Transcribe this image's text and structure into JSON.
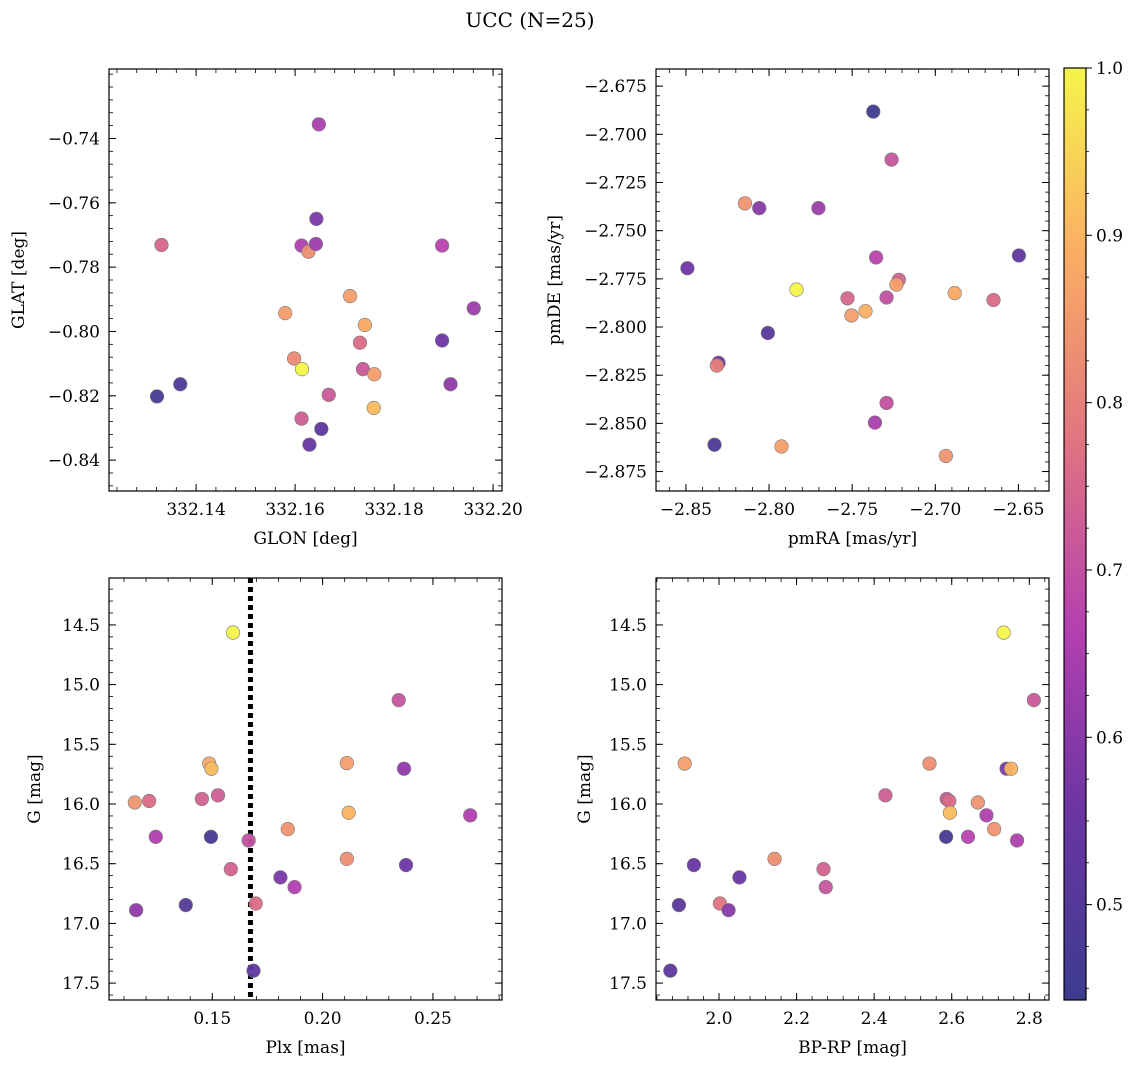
{
  "figure_title": "UCC (N=25)",
  "colorbar": {
    "min": 0.443,
    "max": 1.0,
    "ticks": [
      0.5,
      0.6,
      0.7,
      0.8,
      0.9,
      1.0
    ],
    "tick_labels": [
      "0.5",
      "0.6",
      "0.7",
      "0.8",
      "0.9",
      "1.0"
    ],
    "colormap": "plasma"
  },
  "chart_data": [
    {
      "type": "scatter",
      "xlabel": "GLON [deg]",
      "ylabel": "GLAT [deg]",
      "xlim": [
        332.1224,
        332.2018
      ],
      "ylim": [
        -0.8496,
        -0.7184
      ],
      "y_inverted": false,
      "xticks": [
        332.14,
        332.16,
        332.18,
        332.2
      ],
      "xtick_labels": [
        "332.14",
        "332.16",
        "332.18",
        "332.20"
      ],
      "yticks": [
        -0.84,
        -0.82,
        -0.8,
        -0.78,
        -0.76,
        -0.74
      ],
      "ytick_labels": [
        "−0.84",
        "−0.82",
        "−0.80",
        "−0.78",
        "−0.76",
        "−0.74"
      ],
      "points": [
        {
          "x": 332.1321,
          "y": -0.8202,
          "c": 0.46
        },
        {
          "x": 332.1368,
          "y": -0.8164,
          "c": 0.49
        },
        {
          "x": 332.133,
          "y": -0.7731,
          "c": 0.75
        },
        {
          "x": 332.158,
          "y": -0.7943,
          "c": 0.86
        },
        {
          "x": 332.1598,
          "y": -0.8084,
          "c": 0.82
        },
        {
          "x": 332.1614,
          "y": -0.8117,
          "c": 1.0
        },
        {
          "x": 332.1613,
          "y": -0.8271,
          "c": 0.73
        },
        {
          "x": 332.1629,
          "y": -0.8352,
          "c": 0.54
        },
        {
          "x": 332.1653,
          "y": -0.8303,
          "c": 0.52
        },
        {
          "x": 332.1668,
          "y": -0.8197,
          "c": 0.72
        },
        {
          "x": 332.1613,
          "y": -0.7733,
          "c": 0.66
        },
        {
          "x": 332.1627,
          "y": -0.7752,
          "c": 0.83
        },
        {
          "x": 332.1642,
          "y": -0.7728,
          "c": 0.63
        },
        {
          "x": 332.1643,
          "y": -0.765,
          "c": 0.58
        },
        {
          "x": 332.1648,
          "y": -0.7356,
          "c": 0.65
        },
        {
          "x": 332.1711,
          "y": -0.789,
          "c": 0.86
        },
        {
          "x": 332.1731,
          "y": -0.8035,
          "c": 0.76
        },
        {
          "x": 332.1737,
          "y": -0.8117,
          "c": 0.72
        },
        {
          "x": 332.1741,
          "y": -0.798,
          "c": 0.88
        },
        {
          "x": 332.176,
          "y": -0.8133,
          "c": 0.86
        },
        {
          "x": 332.1759,
          "y": -0.8238,
          "c": 0.91
        },
        {
          "x": 332.1897,
          "y": -0.7733,
          "c": 0.67
        },
        {
          "x": 332.1897,
          "y": -0.8028,
          "c": 0.56
        },
        {
          "x": 332.1914,
          "y": -0.8164,
          "c": 0.61
        },
        {
          "x": 332.1961,
          "y": -0.7928,
          "c": 0.63
        }
      ]
    },
    {
      "type": "scatter",
      "xlabel": "pmRA [mas/yr]",
      "ylabel": "pmDE [mas/yr]",
      "xlim": [
        -2.868,
        -2.6316
      ],
      "ylim": [
        -2.8851,
        -2.6661
      ],
      "y_inverted": false,
      "xticks": [
        -2.85,
        -2.8,
        -2.75,
        -2.7,
        -2.65
      ],
      "xtick_labels": [
        "−2.85",
        "−2.80",
        "−2.75",
        "−2.70",
        "−2.65"
      ],
      "yticks": [
        -2.875,
        -2.85,
        -2.825,
        -2.8,
        -2.775,
        -2.75,
        -2.725,
        -2.7,
        -2.675
      ],
      "ytick_labels": [
        "−2.875",
        "−2.850",
        "−2.825",
        "−2.800",
        "−2.775",
        "−2.750",
        "−2.725",
        "−2.700",
        "−2.675"
      ],
      "points": [
        {
          "x": -2.8491,
          "y": -2.7695,
          "c": 0.56
        },
        {
          "x": -2.8304,
          "y": -2.8186,
          "c": 0.55
        },
        {
          "x": -2.8314,
          "y": -2.82,
          "c": 0.8
        },
        {
          "x": -2.8328,
          "y": -2.8611,
          "c": 0.49
        },
        {
          "x": -2.8145,
          "y": -2.7358,
          "c": 0.84
        },
        {
          "x": -2.8059,
          "y": -2.7383,
          "c": 0.6
        },
        {
          "x": -2.8007,
          "y": -2.8031,
          "c": 0.51
        },
        {
          "x": -2.7835,
          "y": -2.7806,
          "c": 1.0
        },
        {
          "x": -2.7925,
          "y": -2.862,
          "c": 0.86
        },
        {
          "x": -2.7703,
          "y": -2.7383,
          "c": 0.63
        },
        {
          "x": -2.7373,
          "y": -2.6882,
          "c": 0.45
        },
        {
          "x": -2.7263,
          "y": -2.7131,
          "c": 0.71
        },
        {
          "x": -2.7356,
          "y": -2.7639,
          "c": 0.67
        },
        {
          "x": -2.7219,
          "y": -2.7755,
          "c": 0.74
        },
        {
          "x": -2.7234,
          "y": -2.778,
          "c": 0.86
        },
        {
          "x": -2.7528,
          "y": -2.7851,
          "c": 0.75
        },
        {
          "x": -2.7504,
          "y": -2.794,
          "c": 0.86
        },
        {
          "x": -2.742,
          "y": -2.7918,
          "c": 0.89
        },
        {
          "x": -2.7293,
          "y": -2.7847,
          "c": 0.7
        },
        {
          "x": -2.7293,
          "y": -2.8394,
          "c": 0.7
        },
        {
          "x": -2.7363,
          "y": -2.8496,
          "c": 0.65
        },
        {
          "x": -2.6936,
          "y": -2.8669,
          "c": 0.84
        },
        {
          "x": -2.6883,
          "y": -2.7824,
          "c": 0.88
        },
        {
          "x": -2.665,
          "y": -2.786,
          "c": 0.76
        },
        {
          "x": -2.6497,
          "y": -2.7629,
          "c": 0.53
        }
      ]
    },
    {
      "type": "scatter",
      "xlabel": "Plx [mas]",
      "ylabel": "G [mag]",
      "xlim": [
        0.1032,
        0.2813
      ],
      "ylim": [
        14.1071,
        17.6415
      ],
      "y_inverted": true,
      "vline": 0.1673,
      "xticks": [
        0.15,
        0.2,
        0.25
      ],
      "xtick_labels": [
        "0.15",
        "0.20",
        "0.25"
      ],
      "yticks": [
        14.5,
        15.0,
        15.5,
        16.0,
        16.5,
        17.0,
        17.5
      ],
      "ytick_labels": [
        "14.5",
        "15.0",
        "15.5",
        "16.0",
        "16.5",
        "17.0",
        "17.5"
      ],
      "points": [
        {
          "x": 0.1594,
          "y": 14.5643,
          "c": 1.0
        },
        {
          "x": 0.1486,
          "y": 15.6612,
          "c": 0.88
        },
        {
          "x": 0.1496,
          "y": 15.7041,
          "c": 0.91
        },
        {
          "x": 0.1149,
          "y": 15.9875,
          "c": 0.84
        },
        {
          "x": 0.1214,
          "y": 15.9745,
          "c": 0.76
        },
        {
          "x": 0.1453,
          "y": 15.9574,
          "c": 0.74
        },
        {
          "x": 0.1526,
          "y": 15.9273,
          "c": 0.73
        },
        {
          "x": 0.1244,
          "y": 16.2751,
          "c": 0.66
        },
        {
          "x": 0.1494,
          "y": 16.2751,
          "c": 0.47
        },
        {
          "x": 0.1665,
          "y": 16.3051,
          "c": 0.7
        },
        {
          "x": 0.1584,
          "y": 16.5456,
          "c": 0.74
        },
        {
          "x": 0.1155,
          "y": 16.8891,
          "c": 0.61
        },
        {
          "x": 0.138,
          "y": 16.8462,
          "c": 0.5
        },
        {
          "x": 0.1697,
          "y": 16.8333,
          "c": 0.76
        },
        {
          "x": 0.1687,
          "y": 17.3959,
          "c": 0.53
        },
        {
          "x": 0.1809,
          "y": 16.6147,
          "c": 0.58
        },
        {
          "x": 0.1873,
          "y": 16.6963,
          "c": 0.66
        },
        {
          "x": 0.1842,
          "y": 16.2106,
          "c": 0.84
        },
        {
          "x": 0.211,
          "y": 15.6569,
          "c": 0.86
        },
        {
          "x": 0.2118,
          "y": 16.0733,
          "c": 0.9
        },
        {
          "x": 0.211,
          "y": 16.4597,
          "c": 0.83
        },
        {
          "x": 0.2345,
          "y": 15.1299,
          "c": 0.71
        },
        {
          "x": 0.2369,
          "y": 15.7041,
          "c": 0.61
        },
        {
          "x": 0.2378,
          "y": 16.5113,
          "c": 0.56
        },
        {
          "x": 0.2669,
          "y": 16.0948,
          "c": 0.66
        }
      ]
    },
    {
      "type": "scatter",
      "xlabel": "BP-RP [mag]",
      "ylabel": "G [mag]",
      "xlim": [
        1.8375,
        2.8508
      ],
      "ylim": [
        14.1071,
        17.6415
      ],
      "y_inverted": true,
      "xticks": [
        2.0,
        2.2,
        2.4,
        2.6,
        2.8
      ],
      "xtick_labels": [
        "2.0",
        "2.2",
        "2.4",
        "2.6",
        "2.8"
      ],
      "yticks": [
        14.5,
        15.0,
        15.5,
        16.0,
        16.5,
        17.0,
        17.5
      ],
      "ytick_labels": [
        "14.5",
        "15.0",
        "15.5",
        "16.0",
        "16.5",
        "17.0",
        "17.5"
      ],
      "points": [
        {
          "x": 2.7339,
          "y": 14.5643,
          "c": 1.0
        },
        {
          "x": 2.8118,
          "y": 15.1299,
          "c": 0.72
        },
        {
          "x": 1.9115,
          "y": 15.6612,
          "c": 0.86
        },
        {
          "x": 2.5426,
          "y": 15.6612,
          "c": 0.83
        },
        {
          "x": 2.7414,
          "y": 15.7041,
          "c": 0.58
        },
        {
          "x": 2.7529,
          "y": 15.7041,
          "c": 0.9
        },
        {
          "x": 2.4289,
          "y": 15.9273,
          "c": 0.73
        },
        {
          "x": 2.5871,
          "y": 15.9574,
          "c": 0.72
        },
        {
          "x": 2.5937,
          "y": 15.9745,
          "c": 0.76
        },
        {
          "x": 2.6674,
          "y": 15.9875,
          "c": 0.84
        },
        {
          "x": 2.5953,
          "y": 16.0733,
          "c": 0.91
        },
        {
          "x": 2.6896,
          "y": 16.0948,
          "c": 0.66
        },
        {
          "x": 2.7094,
          "y": 16.2106,
          "c": 0.84
        },
        {
          "x": 2.5855,
          "y": 16.2751,
          "c": 0.47
        },
        {
          "x": 2.642,
          "y": 16.2751,
          "c": 0.67
        },
        {
          "x": 2.7685,
          "y": 16.3051,
          "c": 0.66
        },
        {
          "x": 2.1432,
          "y": 16.4597,
          "c": 0.83
        },
        {
          "x": 1.9352,
          "y": 16.5113,
          "c": 0.55
        },
        {
          "x": 2.2694,
          "y": 16.5456,
          "c": 0.74
        },
        {
          "x": 2.0526,
          "y": 16.6147,
          "c": 0.55
        },
        {
          "x": 2.2752,
          "y": 16.6963,
          "c": 0.71
        },
        {
          "x": 2.0023,
          "y": 16.8333,
          "c": 0.78
        },
        {
          "x": 1.8966,
          "y": 16.8462,
          "c": 0.51
        },
        {
          "x": 2.0246,
          "y": 16.8891,
          "c": 0.6
        },
        {
          "x": 1.8744,
          "y": 17.3959,
          "c": 0.52
        }
      ]
    }
  ]
}
